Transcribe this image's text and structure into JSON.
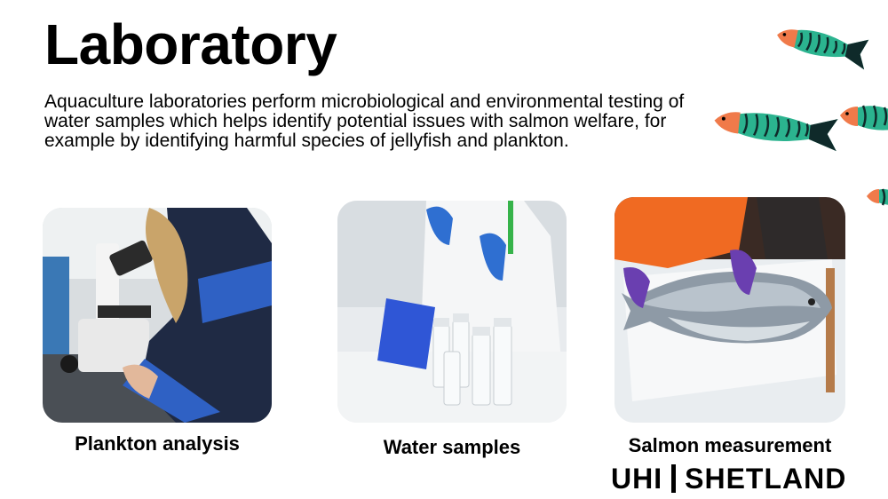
{
  "slide": {
    "title": "Laboratory",
    "description": "Aquaculture laboratories perform microbiological and environmental testing of water samples which helps identify potential issues with salmon welfare, for example by identifying harmful species of jellyfish and plankton."
  },
  "photos": [
    {
      "caption": "Plankton analysis",
      "icon": "microscope-photo"
    },
    {
      "caption": "Water samples",
      "icon": "sample-vials-photo"
    },
    {
      "caption": "Salmon measurement",
      "icon": "salmon-photo"
    }
  ],
  "logo": {
    "left": "UHI",
    "right": "SHETLAND"
  },
  "colors": {
    "fish_body": "#2bb38f",
    "fish_stripe": "#0f2a2a",
    "fish_head": "#f07a4a"
  }
}
